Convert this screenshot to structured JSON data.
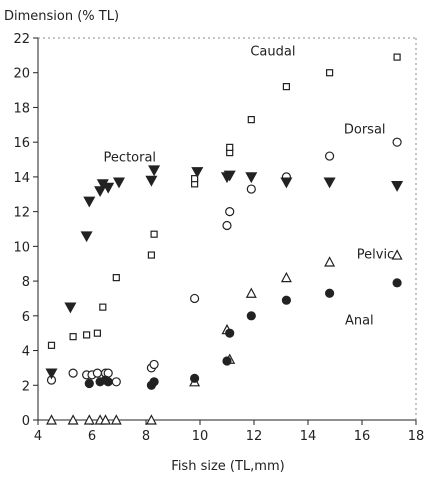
{
  "chart_data": {
    "type": "scatter",
    "title": "",
    "xlabel": "Fish size (TL,mm)",
    "ylabel": "Dimension (% TL)",
    "xlim": [
      4,
      18
    ],
    "ylim": [
      0,
      22
    ],
    "xticks": [
      "4",
      "6",
      "8",
      "10",
      "12",
      "14",
      "16",
      "18"
    ],
    "yticks": [
      "0",
      "2",
      "4",
      "6",
      "8",
      "10",
      "12",
      "14",
      "16",
      "18",
      "20",
      "22"
    ],
    "grid": false,
    "legend": "none",
    "series": [
      {
        "name": "Caudal",
        "marker": "open-square",
        "points": [
          [
            4.5,
            4.3
          ],
          [
            5.3,
            4.8
          ],
          [
            5.8,
            4.9
          ],
          [
            6.2,
            5.0
          ],
          [
            6.4,
            6.5
          ],
          [
            6.9,
            8.2
          ],
          [
            8.2,
            9.5
          ],
          [
            8.3,
            10.7
          ],
          [
            9.8,
            13.6
          ],
          [
            9.8,
            13.9
          ],
          [
            11.1,
            15.4
          ],
          [
            11.1,
            15.7
          ],
          [
            11.9,
            17.3
          ],
          [
            13.2,
            19.2
          ],
          [
            14.8,
            20.0
          ],
          [
            17.3,
            20.9
          ]
        ]
      },
      {
        "name": "Dorsal",
        "marker": "open-circle",
        "points": [
          [
            4.5,
            2.3
          ],
          [
            5.3,
            2.7
          ],
          [
            5.8,
            2.6
          ],
          [
            6.0,
            2.6
          ],
          [
            6.2,
            2.7
          ],
          [
            6.5,
            2.7
          ],
          [
            6.6,
            2.7
          ],
          [
            6.9,
            2.2
          ],
          [
            8.2,
            3.0
          ],
          [
            8.3,
            3.2
          ],
          [
            9.8,
            7.0
          ],
          [
            11.0,
            11.2
          ],
          [
            11.1,
            12.0
          ],
          [
            11.9,
            13.3
          ],
          [
            13.2,
            14.0
          ],
          [
            14.8,
            15.2
          ],
          [
            17.3,
            16.0
          ]
        ]
      },
      {
        "name": "Pectoral",
        "marker": "filled-triangle-down",
        "points": [
          [
            4.5,
            2.7
          ],
          [
            5.2,
            6.5
          ],
          [
            5.8,
            10.6
          ],
          [
            5.9,
            12.6
          ],
          [
            6.3,
            13.2
          ],
          [
            6.4,
            13.6
          ],
          [
            6.6,
            13.4
          ],
          [
            7.0,
            13.7
          ],
          [
            8.2,
            13.8
          ],
          [
            8.3,
            14.4
          ],
          [
            9.9,
            14.3
          ],
          [
            11.0,
            14.0
          ],
          [
            11.1,
            14.1
          ],
          [
            11.9,
            14.0
          ],
          [
            13.2,
            13.7
          ],
          [
            14.8,
            13.7
          ],
          [
            17.3,
            13.5
          ]
        ]
      },
      {
        "name": "Pelvic",
        "marker": "open-triangle",
        "points": [
          [
            4.5,
            0.0
          ],
          [
            5.3,
            0.0
          ],
          [
            5.9,
            0.0
          ],
          [
            6.3,
            0.0
          ],
          [
            6.5,
            0.0
          ],
          [
            6.9,
            0.0
          ],
          [
            8.2,
            0.0
          ],
          [
            9.8,
            2.2
          ],
          [
            11.0,
            5.2
          ],
          [
            11.1,
            3.5
          ],
          [
            11.9,
            7.3
          ],
          [
            13.2,
            8.2
          ],
          [
            14.8,
            9.1
          ],
          [
            17.3,
            9.5
          ]
        ]
      },
      {
        "name": "Anal",
        "marker": "filled-circle",
        "points": [
          [
            5.9,
            2.1
          ],
          [
            6.3,
            2.2
          ],
          [
            6.5,
            2.3
          ],
          [
            6.6,
            2.2
          ],
          [
            8.2,
            2.0
          ],
          [
            8.3,
            2.2
          ],
          [
            9.8,
            2.4
          ],
          [
            11.0,
            3.4
          ],
          [
            11.1,
            5.0
          ],
          [
            11.9,
            6.0
          ],
          [
            13.2,
            6.9
          ],
          [
            14.8,
            7.3
          ],
          [
            17.3,
            7.9
          ]
        ]
      }
    ],
    "annotations": [
      {
        "text": "Caudal",
        "x": 12.7,
        "y": 21.0
      },
      {
        "text": "Dorsal",
        "x": 16.1,
        "y": 16.5
      },
      {
        "text": "Pectoral",
        "x": 7.4,
        "y": 14.9
      },
      {
        "text": "Pelvic",
        "x": 16.5,
        "y": 9.3
      },
      {
        "text": "Anal",
        "x": 15.9,
        "y": 5.5
      }
    ]
  }
}
